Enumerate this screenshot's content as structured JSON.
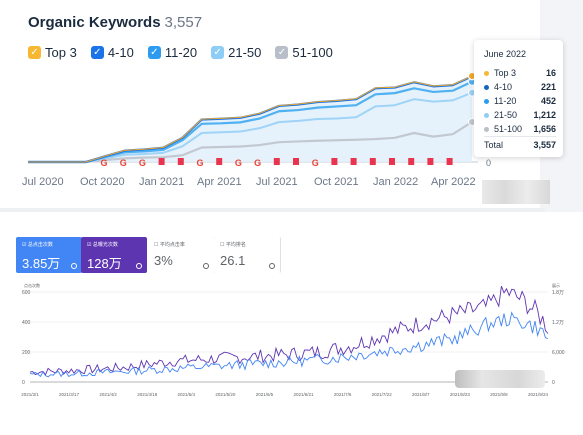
{
  "semrush": {
    "title": "Organic Keywords",
    "total": "3,557",
    "legend": [
      {
        "label": "Top 3",
        "color": "#f7b731"
      },
      {
        "label": "4-10",
        "color": "#1a73e8"
      },
      {
        "label": "11-20",
        "color": "#2d9cf0"
      },
      {
        "label": "21-50",
        "color": "#8ecdf5"
      },
      {
        "label": "51-100",
        "color": "#b8bfc9"
      }
    ],
    "x_labels": [
      "Jul 2020",
      "Oct 2020",
      "Jan 2021",
      "Apr 2021",
      "Jul 2021",
      "Oct 2021",
      "Jan 2022",
      "Apr 2022"
    ],
    "zero_label": "0",
    "tooltip": {
      "title": "June 2022",
      "rows": [
        {
          "label": "Top 3",
          "value": "16",
          "color": "#f7b731"
        },
        {
          "label": "4-10",
          "value": "221",
          "color": "#1565c0"
        },
        {
          "label": "11-20",
          "value": "452",
          "color": "#2d9cf0"
        },
        {
          "label": "21-50",
          "value": "1,212",
          "color": "#8ecdf5"
        },
        {
          "label": "51-100",
          "value": "1,656",
          "color": "#b8bfc9"
        }
      ],
      "total_label": "Total",
      "total_value": "3,557"
    },
    "chart_data": {
      "type": "area",
      "x": [
        "2020-07",
        "2020-08",
        "2020-09",
        "2020-10",
        "2020-11",
        "2020-12",
        "2021-01",
        "2021-02",
        "2021-03",
        "2021-04",
        "2021-05",
        "2021-06",
        "2021-07",
        "2021-08",
        "2021-09",
        "2021-10",
        "2021-11",
        "2021-12",
        "2022-01",
        "2022-02",
        "2022-03",
        "2022-04",
        "2022-05",
        "2022-06"
      ],
      "series": [
        {
          "name": "51-100",
          "values": [
            0,
            0,
            0,
            0,
            80,
            150,
            180,
            200,
            280,
            600,
            620,
            640,
            700,
            820,
            850,
            880,
            900,
            920,
            950,
            1000,
            1200,
            1050,
            1150,
            1656
          ]
        },
        {
          "name": "21-50",
          "values": [
            0,
            0,
            0,
            0,
            150,
            300,
            330,
            380,
            650,
            1200,
            1230,
            1260,
            1400,
            1650,
            1700,
            1780,
            1800,
            1850,
            2300,
            2350,
            2600,
            2500,
            2550,
            2868
          ]
        },
        {
          "name": "11-20",
          "values": [
            0,
            0,
            0,
            0,
            210,
            400,
            440,
            500,
            900,
            1580,
            1600,
            1640,
            1800,
            2100,
            2150,
            2250,
            2300,
            2350,
            2800,
            2850,
            3050,
            2900,
            2950,
            3320
          ]
        },
        {
          "name": "4-10",
          "values": [
            0,
            0,
            0,
            0,
            240,
            470,
            520,
            590,
            1000,
            1760,
            1790,
            1830,
            2000,
            2320,
            2380,
            2480,
            2530,
            2600,
            3050,
            3080,
            3300,
            3130,
            3180,
            3541
          ]
        },
        {
          "name": "Top 3",
          "values": [
            0,
            0,
            0,
            0,
            250,
            480,
            530,
            600,
            1010,
            1775,
            1805,
            1845,
            2015,
            2335,
            2395,
            2495,
            2545,
            2615,
            3065,
            3095,
            3316,
            3146,
            3196,
            3557
          ]
        }
      ]
    }
  },
  "gsc": {
    "cards": [
      {
        "label": "总点击次数",
        "value": "3.85万"
      },
      {
        "label": "总曝光次数",
        "value": "128万"
      },
      {
        "label": "平均点击率",
        "value": "3%"
      },
      {
        "label": "平均排名",
        "value": "26.1"
      }
    ],
    "left_axis_label": "点击次数",
    "right_axis_label": "展示",
    "y_left_ticks": [
      "600",
      "400",
      "200",
      "0"
    ],
    "y_right_ticks": [
      "1.8万",
      "1.2万",
      "6,000",
      "0"
    ],
    "x_labels": [
      "2021/3/1",
      "2021/3/17",
      "2021/4/2",
      "2021/4/18",
      "2021/5/4",
      "2021/5/20",
      "2021/6/5",
      "2021/6/21",
      "2021/7/6",
      "2021/7/22",
      "2021/8/7",
      "2021/8/23",
      "2021/9/8",
      "2021/9/24"
    ],
    "chart_data": {
      "type": "line",
      "x_range": [
        "2021/3/1",
        "2021/10/1"
      ],
      "series": [
        {
          "name": "总点击次数",
          "color": "#4285f4",
          "anchors": [
            [
              0,
              50
            ],
            [
              0.08,
              55
            ],
            [
              0.18,
              70
            ],
            [
              0.28,
              90
            ],
            [
              0.38,
              110
            ],
            [
              0.48,
              130
            ],
            [
              0.56,
              150
            ],
            [
              0.62,
              175
            ],
            [
              0.7,
              215
            ],
            [
              0.76,
              250
            ],
            [
              0.82,
              290
            ],
            [
              0.88,
              380
            ],
            [
              0.92,
              420
            ],
            [
              0.95,
              400
            ],
            [
              0.98,
              360
            ],
            [
              1,
              290
            ]
          ]
        },
        {
          "name": "总曝光次数",
          "color": "#5e35b1",
          "anchors": [
            [
              0,
              2000
            ],
            [
              0.08,
              2300
            ],
            [
              0.18,
              2900
            ],
            [
              0.28,
              4200
            ],
            [
              0.38,
              4800
            ],
            [
              0.48,
              5400
            ],
            [
              0.56,
              6000
            ],
            [
              0.62,
              7200
            ],
            [
              0.7,
              10000
            ],
            [
              0.76,
              12000
            ],
            [
              0.82,
              13500
            ],
            [
              0.88,
              15000
            ],
            [
              0.92,
              18000
            ],
            [
              0.95,
              16500
            ],
            [
              0.98,
              13800
            ],
            [
              1,
              11000
            ]
          ]
        }
      ]
    }
  }
}
